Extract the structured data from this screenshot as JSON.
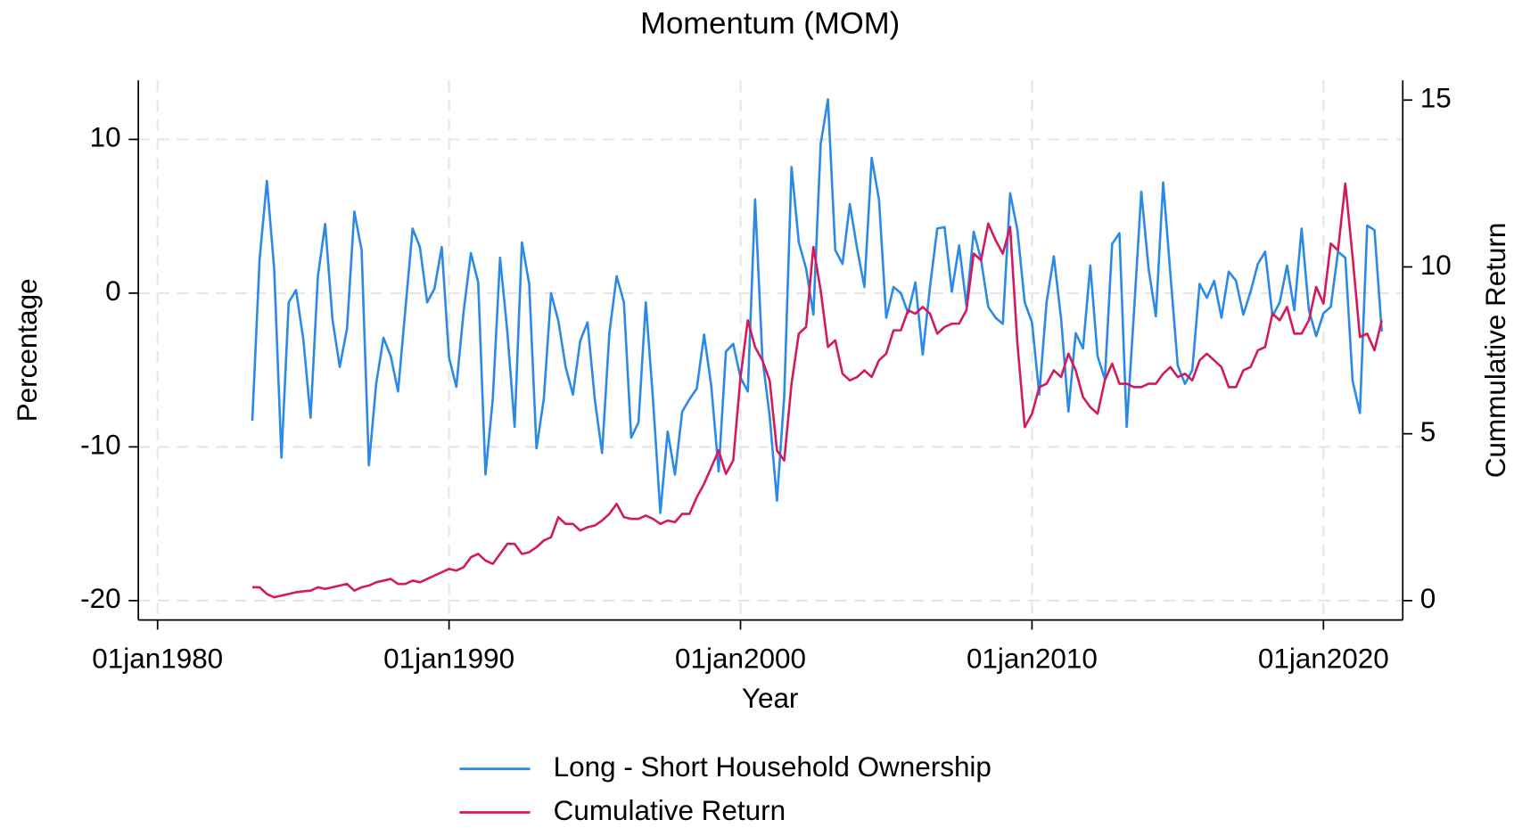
{
  "chart_data": {
    "type": "line",
    "title": "Momentum (MOM)",
    "xlabel": "Year",
    "ylabel": "Percentage",
    "y2label": "Cummulative Return",
    "grid": true,
    "legend": "bottom",
    "xlim": [
      1979.34,
      2022.72
    ],
    "ylim": [
      -21.26,
      13.84
    ],
    "y2lim": [
      -0.58,
      15.59
    ],
    "xticks": [
      {
        "value": 1980,
        "label": "01jan1980"
      },
      {
        "value": 1990,
        "label": "01jan1990"
      },
      {
        "value": 2000,
        "label": "01jan2000"
      },
      {
        "value": 2010,
        "label": "01jan2010"
      },
      {
        "value": 2020,
        "label": "01jan2020"
      }
    ],
    "yticks": [
      -20,
      -10,
      0,
      10
    ],
    "y2ticks": [
      0,
      5,
      10,
      15
    ],
    "x": [
      1983.25,
      1983.5,
      1983.75,
      1984,
      1984.25,
      1984.5,
      1984.75,
      1985,
      1985.25,
      1985.5,
      1985.75,
      1986,
      1986.25,
      1986.5,
      1986.75,
      1987,
      1987.25,
      1987.5,
      1987.75,
      1988,
      1988.25,
      1988.5,
      1988.75,
      1989,
      1989.25,
      1989.5,
      1989.75,
      1990,
      1990.25,
      1990.5,
      1990.75,
      1991,
      1991.25,
      1991.5,
      1991.75,
      1992,
      1992.25,
      1992.5,
      1992.75,
      1993,
      1993.25,
      1993.5,
      1993.75,
      1994,
      1994.25,
      1994.5,
      1994.75,
      1995,
      1995.25,
      1995.5,
      1995.75,
      1996,
      1996.25,
      1996.5,
      1996.75,
      1997,
      1997.25,
      1997.5,
      1997.75,
      1998,
      1998.25,
      1998.5,
      1998.75,
      1999,
      1999.25,
      1999.5,
      1999.75,
      2000,
      2000.25,
      2000.5,
      2000.75,
      2001,
      2001.25,
      2001.5,
      2001.75,
      2002,
      2002.25,
      2002.5,
      2002.75,
      2003,
      2003.25,
      2003.5,
      2003.75,
      2004,
      2004.25,
      2004.5,
      2004.75,
      2005,
      2005.25,
      2005.5,
      2005.75,
      2006,
      2006.25,
      2006.5,
      2006.75,
      2007,
      2007.25,
      2007.5,
      2007.75,
      2008,
      2008.25,
      2008.5,
      2008.75,
      2009,
      2009.25,
      2009.5,
      2009.75,
      2010,
      2010.25,
      2010.5,
      2010.75,
      2011,
      2011.25,
      2011.5,
      2011.75,
      2012,
      2012.25,
      2012.5,
      2012.75,
      2013,
      2013.25,
      2013.5,
      2013.75,
      2014,
      2014.25,
      2014.5,
      2014.75,
      2015,
      2015.25,
      2015.5,
      2015.75,
      2016,
      2016.25,
      2016.5,
      2016.75,
      2017,
      2017.25,
      2017.5,
      2017.75,
      2018,
      2018.25,
      2018.5,
      2018.75,
      2019,
      2019.25,
      2019.5,
      2019.75,
      2020,
      2020.25,
      2020.5,
      2020.75,
      2021,
      2021.25,
      2021.5,
      2021.75,
      2022
    ],
    "series": [
      {
        "name": "Long - Short Household Ownership",
        "color": "#2a8ae6",
        "values": [
          -8.3,
          2.2,
          7.3,
          1.6,
          -10.7,
          -0.6,
          0.2,
          -3,
          -8.1,
          1.1,
          4.5,
          -1.7,
          -4.8,
          -2.3,
          5.3,
          2.8,
          -11.2,
          -5.9,
          -2.9,
          -4.1,
          -6.4,
          -1.1,
          4.2,
          3.0,
          -0.6,
          0.3,
          3.0,
          -4.2,
          -6.1,
          -1.2,
          2.6,
          0.7,
          -11.8,
          -6.9,
          2.3,
          -2.5,
          -8.7,
          3.3,
          0.6,
          -10.1,
          -6.9,
          0,
          -1.8,
          -4.8,
          -6.6,
          -3.1,
          -1.9,
          -6.9,
          -10.4,
          -2.6,
          1.1,
          -0.6,
          -9.4,
          -8.4,
          -0.6,
          -7.0,
          -14.3,
          -9.0,
          -11.8,
          -7.7,
          -6.9,
          -6.2,
          -2.7,
          -6.1,
          -11.6,
          -3.8,
          -3.3,
          -5.5,
          -6.4,
          6.1,
          -4.2,
          -8.0,
          -13.5,
          -6.7,
          8.2,
          3.3,
          1.6,
          -1.4,
          9.7,
          12.6,
          2.8,
          1.9,
          5.8,
          2.9,
          0.4,
          8.8,
          6.1,
          -1.6,
          0.4,
          0,
          -1.3,
          0.7,
          -4.0,
          0.4,
          4.2,
          4.3,
          0.1,
          3.1,
          -0.8,
          4.0,
          2.2,
          -0.9,
          -1.6,
          -2.0,
          6.5,
          4.1,
          -0.6,
          -1.9,
          -6.6,
          -0.6,
          2.4,
          -1.7,
          -7.7,
          -2.6,
          -3.6,
          1.8,
          -4.1,
          -5.6,
          3.2,
          3.9,
          -8.7,
          -1.2,
          6.6,
          1.6,
          -1.5,
          7.2,
          1.2,
          -4.7,
          -5.9,
          -5.0,
          0.6,
          -0.3,
          0.8,
          -1.6,
          1.4,
          0.8,
          -1.4,
          0.1,
          1.9,
          2.7,
          -1.5,
          -0.6,
          1.8,
          -1.1,
          4.2,
          -1.1,
          -2.8,
          -1.3,
          -0.9,
          2.7,
          2.3,
          -5.7,
          -7.8,
          4.4,
          4.1,
          -2.5
        ]
      },
      {
        "name": "Cumulative Return",
        "color": "#d21a5c",
        "axis": "y2",
        "values": [
          0.4,
          0.4,
          0.2,
          0.1,
          0.15,
          0.2,
          0.25,
          0.28,
          0.3,
          0.4,
          0.35,
          0.4,
          0.45,
          0.5,
          0.3,
          0.4,
          0.45,
          0.55,
          0.6,
          0.65,
          0.5,
          0.5,
          0.6,
          0.55,
          0.65,
          0.75,
          0.85,
          0.95,
          0.9,
          1.0,
          1.3,
          1.4,
          1.2,
          1.1,
          1.4,
          1.7,
          1.7,
          1.4,
          1.45,
          1.6,
          1.8,
          1.9,
          2.5,
          2.3,
          2.3,
          2.1,
          2.2,
          2.25,
          2.4,
          2.6,
          2.9,
          2.5,
          2.45,
          2.45,
          2.55,
          2.45,
          2.3,
          2.4,
          2.35,
          2.6,
          2.6,
          3.1,
          3.5,
          4.0,
          4.5,
          3.8,
          4.2,
          6.7,
          8.4,
          7.6,
          7.2,
          6.6,
          4.5,
          4.2,
          6.5,
          8.0,
          8.2,
          10.6,
          9.3,
          7.6,
          7.8,
          6.8,
          6.6,
          6.7,
          6.9,
          6.7,
          7.2,
          7.4,
          8.1,
          8.1,
          8.7,
          8.6,
          8.8,
          8.6,
          8.0,
          8.2,
          8.3,
          8.3,
          8.7,
          10.4,
          10.2,
          11.3,
          10.8,
          10.4,
          11.2,
          7.7,
          5.2,
          5.6,
          6.4,
          6.5,
          6.9,
          6.7,
          7.4,
          6.9,
          6.1,
          5.8,
          5.6,
          6.6,
          7.1,
          6.5,
          6.5,
          6.4,
          6.4,
          6.5,
          6.5,
          6.8,
          7.0,
          6.7,
          6.8,
          6.6,
          7.2,
          7.4,
          7.2,
          7.0,
          6.4,
          6.4,
          6.9,
          7.0,
          7.5,
          7.6,
          8.6,
          8.4,
          8.8,
          8.0,
          8.0,
          8.4,
          9.4,
          8.9,
          10.7,
          10.5,
          12.5,
          10.3,
          7.9,
          8.0,
          7.5,
          8.4
        ]
      }
    ]
  }
}
